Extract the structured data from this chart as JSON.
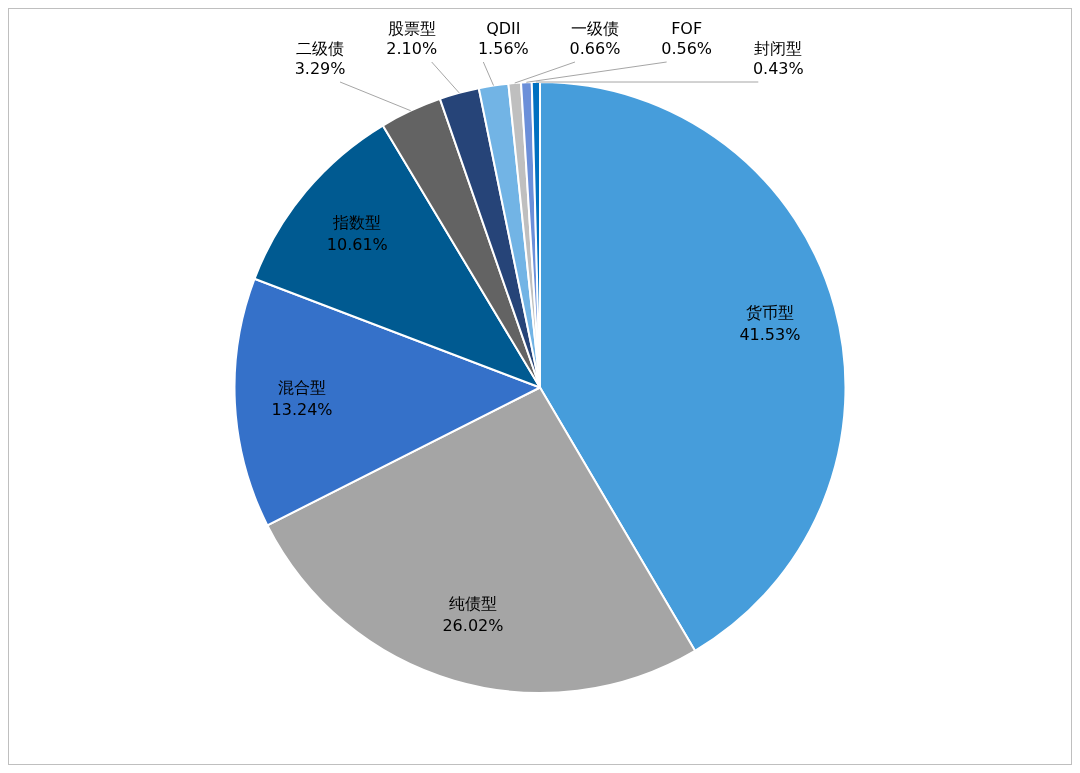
{
  "chart_data": {
    "type": "pie",
    "categories": [
      "货币型",
      "纯债型",
      "混合型",
      "指数型",
      "二级债",
      "股票型",
      "QDII",
      "一级债",
      "FOF",
      "封闭型"
    ],
    "values": [
      41.53,
      26.02,
      13.24,
      10.61,
      3.29,
      2.1,
      1.56,
      0.66,
      0.56,
      0.43
    ],
    "value_labels": [
      "41.53%",
      "26.02%",
      "13.24%",
      "10.61%",
      "3.29%",
      "2.10%",
      "1.56%",
      "0.66%",
      "0.56%",
      "0.43%"
    ],
    "colors": [
      "#469ddb",
      "#a5a5a5",
      "#3571c9",
      "#005a91",
      "#636363",
      "#264478",
      "#72b4e5",
      "#bfbfbf",
      "#6b8fd9",
      "#0070c0"
    ],
    "legend": false
  }
}
